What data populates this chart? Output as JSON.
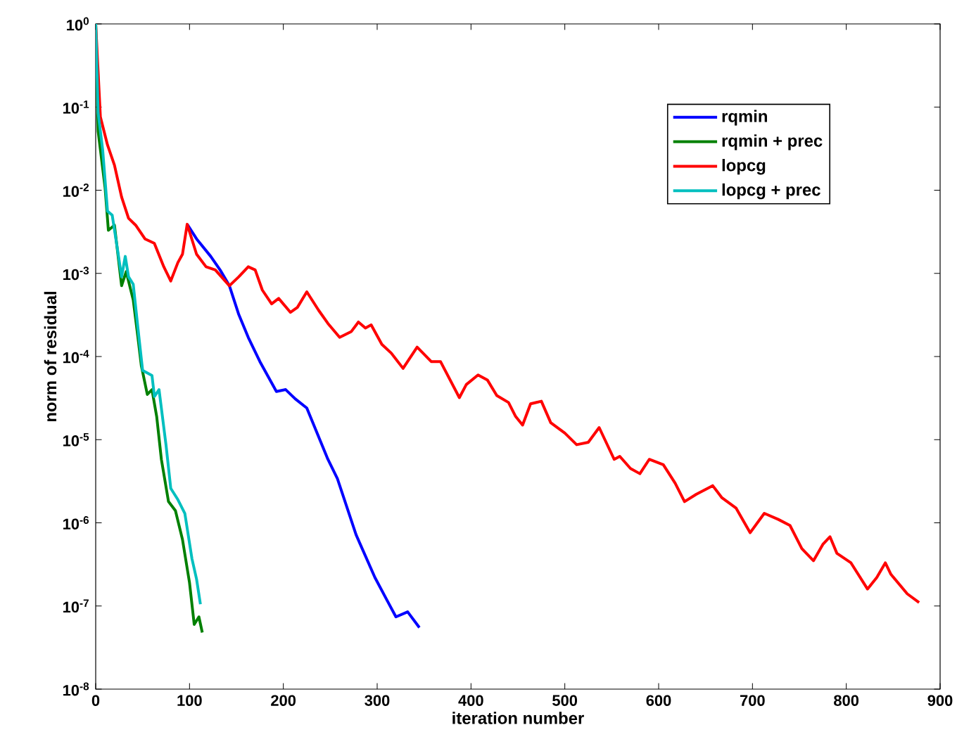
{
  "chart_data": {
    "type": "line",
    "xlabel": "iteration number",
    "ylabel": "norm of residual",
    "log": "y",
    "xlim": [
      0,
      900
    ],
    "xticks": [
      0,
      100,
      200,
      300,
      400,
      500,
      600,
      700,
      800,
      900
    ],
    "ylim": [
      1e-08,
      1
    ],
    "yticks": [
      {
        "value": 1e-08,
        "label": "10$^{-8}$"
      },
      {
        "value": 1e-07,
        "label": "10$^{-7}$"
      },
      {
        "value": 1e-06,
        "label": "10$^{-6}$"
      },
      {
        "value": 1e-05,
        "label": "10$^{-5}$"
      },
      {
        "value": 0.0001,
        "label": "10$^{-4}$"
      },
      {
        "value": 0.001,
        "label": "10$^{-3}$"
      },
      {
        "value": 0.01,
        "label": "10$^{-2}$"
      },
      {
        "value": 0.1,
        "label": "10$^{-1}$"
      },
      {
        "value": 1,
        "label": "10$^{0}$"
      }
    ],
    "grid": false,
    "legend": "top right",
    "marker": "none",
    "line_style": "solid",
    "series": [
      {
        "name": "rqmin",
        "color": "#0000ff",
        "x": [
          97.5,
          107.5,
          122.6,
          132.6,
          142.5,
          152.5,
          162.6,
          175,
          192.6,
          202.5,
          212.6,
          225,
          247.5,
          257.6,
          277.5,
          297.6,
          310,
          320,
          332.5,
          345
        ],
        "values": [
          0.0039,
          0.0026,
          0.0016,
          0.0011,
          0.00071,
          0.00032,
          0.00017,
          8.7e-05,
          3.8e-05,
          4e-05,
          3.1e-05,
          2.4e-05,
          5.8e-06,
          3.4e-06,
          7.2e-07,
          2.2e-07,
          1.2e-07,
          7.4e-08,
          8.5e-08,
          5.5e-08
        ]
      },
      {
        "name": "rqmin + prec",
        "color": "#008000",
        "x": [
          0,
          2.6,
          10,
          13.5,
          20,
          27.6,
          32.5,
          40,
          45,
          48.6,
          55,
          60,
          65,
          70,
          77.6,
          85,
          92.5,
          100,
          105,
          110,
          113.6
        ],
        "values": [
          1,
          0.051,
          0.0107,
          0.0033,
          0.0038,
          0.00071,
          0.00105,
          0.00048,
          0.00017,
          7.8e-05,
          3.5e-05,
          4e-05,
          1.9e-05,
          5.8e-06,
          1.8e-06,
          1.4e-06,
          6.3e-07,
          1.9e-07,
          6e-08,
          7.4e-08,
          4.8e-08
        ]
      },
      {
        "name": "lopcg",
        "color": "#ff0000",
        "x": [
          0,
          5,
          12.6,
          20,
          27.6,
          35,
          42.6,
          52.5,
          62.5,
          72.6,
          80,
          87.6,
          92.5,
          97.5,
          107.5,
          117.6,
          127.5,
          142.5,
          152.5,
          162.6,
          170,
          177.6,
          187.5,
          195,
          207.6,
          215,
          225,
          237.6,
          247.5,
          260,
          272.5,
          280,
          287.5,
          293.6,
          305,
          315,
          327.6,
          342.6,
          357.6,
          367.5,
          387.6,
          395,
          407.5,
          417.6,
          427.5,
          440,
          447.6,
          455,
          463.5,
          475,
          485,
          500,
          512.6,
          525,
          536.6,
          552.6,
          558.6,
          570,
          580,
          590,
          605,
          617.6,
          627.6,
          640,
          657.6,
          667.5,
          682.6,
          697.5,
          712.6,
          727.5,
          740,
          752.6,
          765,
          775,
          782.6,
          790,
          805,
          822.6,
          832.5,
          841.6,
          847.6,
          865,
          877.6
        ],
        "values": [
          1,
          0.076,
          0.035,
          0.02,
          0.0083,
          0.0046,
          0.0038,
          0.0026,
          0.0023,
          0.0012,
          0.00081,
          0.00135,
          0.0017,
          0.0039,
          0.0017,
          0.0012,
          0.0011,
          0.00071,
          0.00091,
          0.0012,
          0.0011,
          0.00063,
          0.00043,
          0.0005,
          0.00034,
          0.00039,
          0.0006,
          0.00036,
          0.00025,
          0.00017,
          0.0002,
          0.00026,
          0.00022,
          0.00024,
          0.00014,
          0.00011,
          7.2e-05,
          0.00013,
          8.7e-05,
          8.7e-05,
          3.2e-05,
          4.6e-05,
          6e-05,
          5.2e-05,
          3.4e-05,
          2.8e-05,
          1.9e-05,
          1.5e-05,
          2.7e-05,
          2.9e-05,
          1.6e-05,
          1.2e-05,
          8.7e-06,
          9.3e-06,
          1.4e-05,
          5.8e-06,
          6.3e-06,
          4.5e-06,
          3.9e-06,
          5.8e-06,
          5e-06,
          3e-06,
          1.8e-06,
          2.2e-06,
          2.8e-06,
          2e-06,
          1.5e-06,
          7.6e-07,
          1.3e-06,
          1.1e-06,
          9.3e-07,
          4.9e-07,
          3.5e-07,
          5.5e-07,
          6.8e-07,
          4.3e-07,
          3.3e-07,
          1.6e-07,
          2.2e-07,
          3.3e-07,
          2.4e-07,
          1.4e-07,
          1.1e-07
        ]
      },
      {
        "name": "lopcg + prec",
        "color": "#00bfbf",
        "x": [
          0,
          2.6,
          7.5,
          12.6,
          17.6,
          22.5,
          27.6,
          31.5,
          35,
          40,
          45,
          50,
          60,
          62.6,
          67.5,
          75,
          80,
          87.6,
          95,
          102.6,
          107.5,
          111.6
        ],
        "values": [
          1,
          0.085,
          0.03,
          0.0056,
          0.005,
          0.0022,
          0.00091,
          0.0016,
          0.00091,
          0.00074,
          0.00022,
          6.8e-05,
          5.9e-05,
          3.3e-05,
          4e-05,
          8.5e-06,
          2.6e-06,
          1.9e-06,
          1.3e-06,
          3.7e-07,
          2.1e-07,
          1.05e-07
        ]
      }
    ]
  }
}
